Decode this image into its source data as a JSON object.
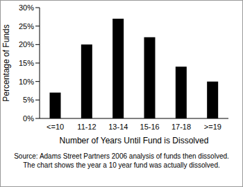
{
  "chart_data": {
    "type": "bar",
    "categories": [
      "<=10",
      "11-12",
      "13-14",
      "15-16",
      "17-18",
      ">=19"
    ],
    "values": [
      7,
      20,
      27,
      22,
      14,
      10
    ],
    "color": "#000000",
    "ylim": [
      0,
      30
    ],
    "yticks": [
      {
        "value": 0,
        "label": "0%"
      },
      {
        "value": 5,
        "label": "5%"
      },
      {
        "value": 10,
        "label": "10%"
      },
      {
        "value": 15,
        "label": "15%"
      },
      {
        "value": 20,
        "label": "20%"
      },
      {
        "value": 25,
        "label": "25%"
      },
      {
        "value": 30,
        "label": "30%"
      }
    ],
    "xlabel": "Number of Years Until Fund is Dissolved",
    "ylabel": "Percentage of Funds",
    "annotations": [
      "Source: Adams Street Partners 2006 analysis of funds then dissolved.",
      "The chart shows the year a 10 year fund was actually dissolved."
    ],
    "grid": false,
    "data_labels": false
  }
}
